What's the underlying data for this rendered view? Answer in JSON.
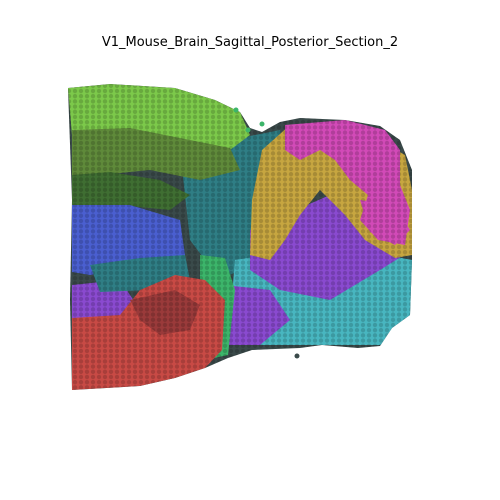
{
  "title": "V1_Mouse_Brain_Sagittal_Posterior_Section_2",
  "colors": {
    "green_light": "#7cc94a",
    "olive_green": "#5f8a3a",
    "dark_green": "#3f6e32",
    "forest_green": "#2f8a4a",
    "bright_green": "#3cb56a",
    "blue": "#4a5fd0",
    "teal": "#2f7e85",
    "cyan": "#48b6c0",
    "purple": "#8a4ad0",
    "magenta": "#d24ab8",
    "gold": "#c7a640",
    "red": "#c84a45",
    "dark_red": "#9a3a3a",
    "slate": "#3a4a4a"
  }
}
